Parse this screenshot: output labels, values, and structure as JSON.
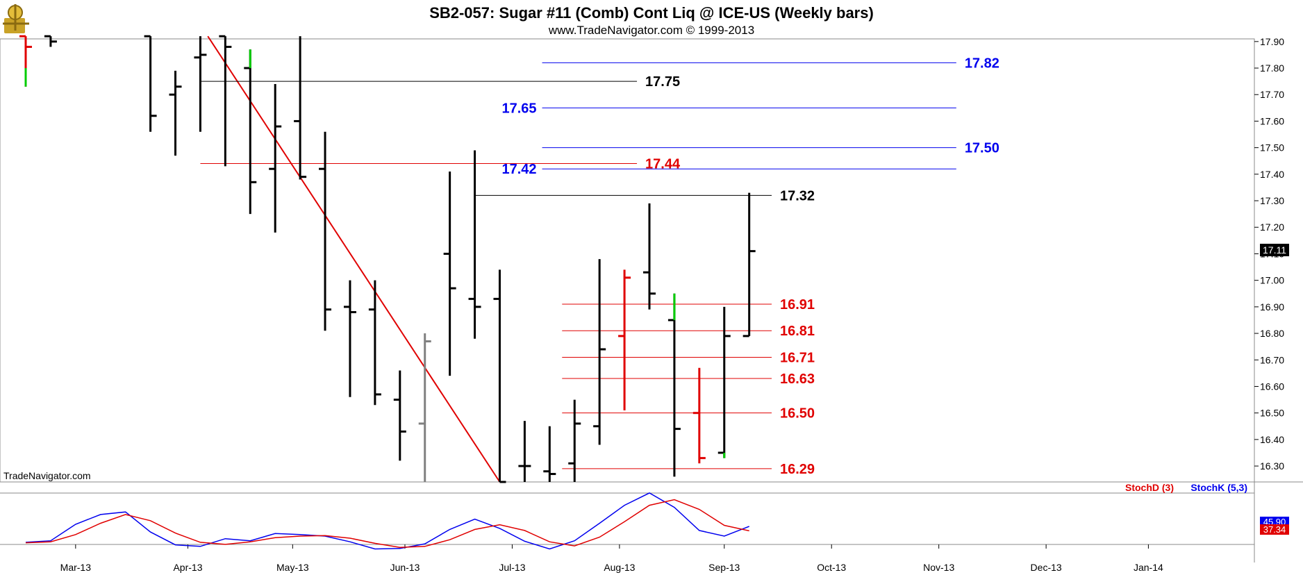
{
  "header": {
    "title": "SB2-057:  Sugar #11 (Comb) Cont Liq @ ICE-US  (Weekly bars)",
    "subtitle": "www.TradeNavigator.com © 1999-2013"
  },
  "watermark": "TradeNavigator.com",
  "colors": {
    "background_header": "#ffffff",
    "bar": "#000000",
    "trendline": "#e00000",
    "blue_level": "#0000ee",
    "red_level": "#e00000",
    "black_level": "#000000",
    "stoch_d": "#e00000",
    "stoch_k": "#0000ee",
    "up_tick": "#00cc00"
  },
  "last_price": {
    "value": 17.11,
    "label": "17.11"
  },
  "chart_data": {
    "type": "ohlc",
    "interval": "weekly",
    "x_axis": {
      "labels": [
        "Mar-13",
        "Apr-13",
        "May-13",
        "Jun-13",
        "Jul-13",
        "Aug-13",
        "Sep-13",
        "Oct-13",
        "Nov-13",
        "Dec-13",
        "Jan-14"
      ],
      "label_weeks": [
        2,
        6.5,
        10.7,
        15.2,
        19.5,
        23.8,
        28,
        32.3,
        36.6,
        40.9,
        45
      ]
    },
    "y_axis": {
      "min": 16.24,
      "max": 17.91,
      "ticks": [
        "16.30",
        "16.40",
        "16.50",
        "16.60",
        "16.70",
        "16.80",
        "16.90",
        "17.00",
        "17.10",
        "17.20",
        "17.30",
        "17.40",
        "17.50",
        "17.60",
        "17.70",
        "17.80",
        "17.90"
      ]
    },
    "bars": [
      {
        "w": 0,
        "o": 17.92,
        "h": 17.92,
        "l": 17.73,
        "c": 17.88,
        "color": "#e00000"
      },
      {
        "w": 1,
        "o": 17.92,
        "h": 17.92,
        "l": 17.88,
        "c": 17.9,
        "color": "#000000"
      },
      {
        "w": 5,
        "o": 17.92,
        "h": 17.92,
        "l": 17.56,
        "c": 17.62,
        "color": "#000000"
      },
      {
        "w": 6,
        "o": 17.7,
        "h": 17.79,
        "l": 17.47,
        "c": 17.73,
        "color": "#000000"
      },
      {
        "w": 7,
        "o": 17.84,
        "h": 17.92,
        "l": 17.56,
        "c": 17.85,
        "color": "#000000"
      },
      {
        "w": 8,
        "o": 17.92,
        "h": 17.92,
        "l": 17.43,
        "c": 17.88,
        "color": "#000000"
      },
      {
        "w": 9,
        "o": 17.8,
        "h": 17.87,
        "l": 17.25,
        "c": 17.37,
        "color": "#000000"
      },
      {
        "w": 10,
        "o": 17.42,
        "h": 17.74,
        "l": 17.18,
        "c": 17.58,
        "color": "#000000"
      },
      {
        "w": 11,
        "o": 17.6,
        "h": 17.92,
        "l": 17.38,
        "c": 17.39,
        "color": "#000000"
      },
      {
        "w": 12,
        "o": 17.42,
        "h": 17.56,
        "l": 16.81,
        "c": 16.89,
        "color": "#000000"
      },
      {
        "w": 13,
        "o": 16.9,
        "h": 17.0,
        "l": 16.56,
        "c": 16.88,
        "color": "#000000"
      },
      {
        "w": 14,
        "o": 16.89,
        "h": 17.0,
        "l": 16.53,
        "c": 16.57,
        "color": "#000000"
      },
      {
        "w": 15,
        "o": 16.55,
        "h": 16.66,
        "l": 16.32,
        "c": 16.43,
        "color": "#000000"
      },
      {
        "w": 16,
        "o": 16.46,
        "h": 16.8,
        "l": 16.24,
        "c": 16.77,
        "color": "#808080"
      },
      {
        "w": 17,
        "o": 17.1,
        "h": 17.41,
        "l": 16.64,
        "c": 16.97,
        "color": "#000000"
      },
      {
        "w": 18,
        "o": 16.93,
        "h": 17.49,
        "l": 16.78,
        "c": 16.9,
        "color": "#000000"
      },
      {
        "w": 19,
        "o": 16.93,
        "h": 17.04,
        "l": 16.24,
        "c": 16.24,
        "color": "#000000"
      },
      {
        "w": 20,
        "o": 16.3,
        "h": 16.47,
        "l": 16.24,
        "c": 16.3,
        "color": "#000000"
      },
      {
        "w": 21,
        "o": 16.28,
        "h": 16.45,
        "l": 16.24,
        "c": 16.27,
        "color": "#000000"
      },
      {
        "w": 22,
        "o": 16.31,
        "h": 16.55,
        "l": 16.24,
        "c": 16.46,
        "color": "#000000"
      },
      {
        "w": 23,
        "o": 16.45,
        "h": 17.08,
        "l": 16.38,
        "c": 16.74,
        "color": "#000000"
      },
      {
        "w": 24,
        "o": 16.79,
        "h": 17.04,
        "l": 16.51,
        "c": 17.01,
        "color": "#e00000"
      },
      {
        "w": 25,
        "o": 17.03,
        "h": 17.29,
        "l": 16.89,
        "c": 16.95,
        "color": "#000000"
      },
      {
        "w": 26,
        "o": 16.85,
        "h": 16.95,
        "l": 16.26,
        "c": 16.44,
        "color": "#000000"
      },
      {
        "w": 27,
        "o": 16.5,
        "h": 16.67,
        "l": 16.31,
        "c": 16.33,
        "color": "#e00000"
      },
      {
        "w": 28,
        "o": 16.35,
        "h": 16.9,
        "l": 16.33,
        "c": 16.79,
        "color": "#000000"
      },
      {
        "w": 29,
        "o": 16.79,
        "h": 17.33,
        "l": 16.79,
        "c": 17.11,
        "color": "#000000"
      }
    ],
    "up_ticks": [
      {
        "w": 0,
        "from": 17.73,
        "to": 17.8
      },
      {
        "w": 9,
        "from": 17.8,
        "to": 17.87
      },
      {
        "w": 26,
        "from": 16.85,
        "to": 16.95
      },
      {
        "w": 28,
        "from": 16.33,
        "to": 16.35
      }
    ],
    "trendline": {
      "w1": 7.3,
      "y1": 17.92,
      "w2": 19,
      "y2": 16.24
    },
    "levels": [
      {
        "price": 17.82,
        "label": "17.82",
        "color": "#0000ee",
        "w_from": 20.7,
        "w_to": 37.3,
        "label_side": "right"
      },
      {
        "price": 17.75,
        "label": "17.75",
        "color": "#000000",
        "w_from": 7,
        "w_to": 24.5,
        "label_side": "right"
      },
      {
        "price": 17.65,
        "label": "17.65",
        "color": "#0000ee",
        "w_from": 20.7,
        "w_to": 37.3,
        "label_side": "left"
      },
      {
        "price": 17.5,
        "label": "17.50",
        "color": "#0000ee",
        "w_from": 20.7,
        "w_to": 37.3,
        "label_side": "right"
      },
      {
        "price": 17.44,
        "label": "17.44",
        "color": "#e00000",
        "w_from": 7,
        "w_to": 24.5,
        "label_side": "right"
      },
      {
        "price": 17.42,
        "label": "17.42",
        "color": "#0000ee",
        "w_from": 20.7,
        "w_to": 37.3,
        "label_side": "left"
      },
      {
        "price": 17.32,
        "label": "17.32",
        "color": "#000000",
        "w_from": 18,
        "w_to": 29.9,
        "label_side": "right"
      },
      {
        "price": 16.91,
        "label": "16.91",
        "color": "#e00000",
        "w_from": 21.5,
        "w_to": 29.9,
        "label_side": "right"
      },
      {
        "price": 16.81,
        "label": "16.81",
        "color": "#e00000",
        "w_from": 21.5,
        "w_to": 29.9,
        "label_side": "right"
      },
      {
        "price": 16.71,
        "label": "16.71",
        "color": "#e00000",
        "w_from": 21.5,
        "w_to": 29.9,
        "label_side": "right"
      },
      {
        "price": 16.63,
        "label": "16.63",
        "color": "#e00000",
        "w_from": 21.5,
        "w_to": 29.9,
        "label_side": "right"
      },
      {
        "price": 16.5,
        "label": "16.50",
        "color": "#e00000",
        "w_from": 21.5,
        "w_to": 29.9,
        "label_side": "right"
      },
      {
        "price": 16.29,
        "label": "16.29",
        "color": "#e00000",
        "w_from": 21.5,
        "w_to": 29.9,
        "label_side": "right"
      }
    ],
    "oscillator": {
      "legend": [
        {
          "name": "StochD (3)",
          "color": "#e00000"
        },
        {
          "name": "StochK (5,3)",
          "color": "#0000ee"
        }
      ],
      "range": [
        0,
        100
      ],
      "stoch_k": [
        {
          "w": 0,
          "v": 15
        },
        {
          "w": 1,
          "v": 18
        },
        {
          "w": 2,
          "v": 50
        },
        {
          "w": 3,
          "v": 69
        },
        {
          "w": 4,
          "v": 74
        },
        {
          "w": 5,
          "v": 35
        },
        {
          "w": 6,
          "v": 10
        },
        {
          "w": 7,
          "v": 7
        },
        {
          "w": 8,
          "v": 22
        },
        {
          "w": 9,
          "v": 18
        },
        {
          "w": 10,
          "v": 32
        },
        {
          "w": 11,
          "v": 30
        },
        {
          "w": 12,
          "v": 27
        },
        {
          "w": 13,
          "v": 16
        },
        {
          "w": 14,
          "v": 2
        },
        {
          "w": 15,
          "v": 3
        },
        {
          "w": 16,
          "v": 12
        },
        {
          "w": 17,
          "v": 40
        },
        {
          "w": 18,
          "v": 60
        },
        {
          "w": 19,
          "v": 42
        },
        {
          "w": 20,
          "v": 17
        },
        {
          "w": 21,
          "v": 2
        },
        {
          "w": 22,
          "v": 18
        },
        {
          "w": 23,
          "v": 52
        },
        {
          "w": 24,
          "v": 87
        },
        {
          "w": 25,
          "v": 111
        },
        {
          "w": 26,
          "v": 83
        },
        {
          "w": 27,
          "v": 38
        },
        {
          "w": 28,
          "v": 27
        },
        {
          "w": 29,
          "v": 45.9
        }
      ],
      "stoch_d": [
        {
          "w": 0,
          "v": 14
        },
        {
          "w": 1,
          "v": 16
        },
        {
          "w": 2,
          "v": 30
        },
        {
          "w": 3,
          "v": 52
        },
        {
          "w": 4,
          "v": 69
        },
        {
          "w": 5,
          "v": 57
        },
        {
          "w": 6,
          "v": 33
        },
        {
          "w": 7,
          "v": 15
        },
        {
          "w": 8,
          "v": 11
        },
        {
          "w": 9,
          "v": 16
        },
        {
          "w": 10,
          "v": 24
        },
        {
          "w": 11,
          "v": 27
        },
        {
          "w": 12,
          "v": 28
        },
        {
          "w": 13,
          "v": 23
        },
        {
          "w": 14,
          "v": 13
        },
        {
          "w": 15,
          "v": 5
        },
        {
          "w": 16,
          "v": 7
        },
        {
          "w": 17,
          "v": 20
        },
        {
          "w": 18,
          "v": 40
        },
        {
          "w": 19,
          "v": 49
        },
        {
          "w": 20,
          "v": 38
        },
        {
          "w": 21,
          "v": 16
        },
        {
          "w": 22,
          "v": 8
        },
        {
          "w": 23,
          "v": 25
        },
        {
          "w": 24,
          "v": 55
        },
        {
          "w": 25,
          "v": 87
        },
        {
          "w": 26,
          "v": 98
        },
        {
          "w": 27,
          "v": 79
        },
        {
          "w": 28,
          "v": 48
        },
        {
          "w": 29,
          "v": 37.34
        }
      ],
      "last_k": "45.90",
      "last_d": "37.34"
    }
  }
}
